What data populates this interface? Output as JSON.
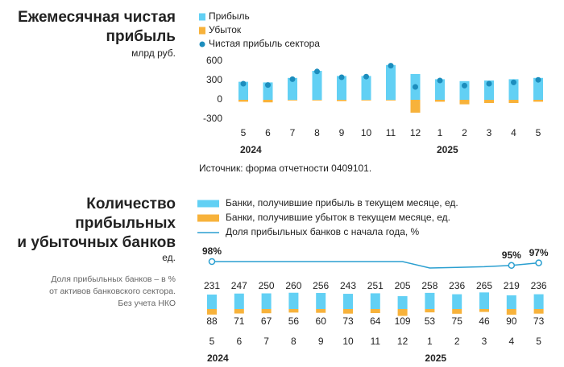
{
  "chart_data": [
    {
      "type": "bar",
      "title_lines": [
        "Ежемесячная чистая",
        "прибыль"
      ],
      "subtitle": "млрд руб.",
      "categories": [
        "5",
        "6",
        "7",
        "8",
        "9",
        "10",
        "11",
        "12",
        "1",
        "2",
        "3",
        "4",
        "5"
      ],
      "years": [
        "2024",
        "2025"
      ],
      "series": [
        {
          "name": "Прибыль",
          "kind": "bar",
          "color": "#62d0f4",
          "values": [
            280,
            270,
            340,
            450,
            370,
            370,
            540,
            400,
            320,
            290,
            300,
            320,
            340
          ]
        },
        {
          "name": "Убыток",
          "kind": "bar",
          "color": "#f7b23b",
          "values": [
            -30,
            -40,
            -10,
            -10,
            -20,
            -10,
            -10,
            -200,
            -30,
            -70,
            -50,
            -50,
            -30
          ]
        },
        {
          "name": "Чистая прибыль сектора",
          "kind": "dot",
          "color": "#1c8dbd",
          "values": [
            250,
            230,
            320,
            440,
            350,
            360,
            530,
            200,
            300,
            220,
            250,
            270,
            310
          ]
        }
      ],
      "ylim": [
        -300,
        600
      ],
      "yticks": [
        600,
        300,
        0,
        -300
      ],
      "source": "Источник: форма отчетности 0409101."
    },
    {
      "type": "combo",
      "title_lines": [
        "Количество",
        "прибыльных",
        "и убыточных банков"
      ],
      "unit": "ед.",
      "note_lines": [
        "Доля прибыльных банков – в %",
        "от активов банковского сектора.",
        "Без учета НКО"
      ],
      "categories": [
        "5",
        "6",
        "7",
        "8",
        "9",
        "10",
        "11",
        "12",
        "1",
        "2",
        "3",
        "4",
        "5"
      ],
      "years": [
        "2024",
        "2025"
      ],
      "series": [
        {
          "name": "Банки, получившие прибыль в текущем месяце, ед.",
          "kind": "bar",
          "color": "#62d0f4",
          "label_color": "#222222",
          "values": [
            231,
            247,
            250,
            260,
            256,
            243,
            251,
            205,
            258,
            236,
            265,
            219,
            236
          ]
        },
        {
          "name": "Банки, получившие убыток в текущем месяце, ед.",
          "kind": "bar",
          "color": "#f7b23b",
          "label_color": "#f0a52a",
          "values": [
            88,
            71,
            67,
            56,
            60,
            73,
            64,
            109,
            53,
            75,
            46,
            90,
            73
          ]
        },
        {
          "name": "Доля прибыльных банков с начала года, %",
          "kind": "line",
          "color": "#2a9fd0",
          "values": [
            98,
            98,
            98,
            98,
            98,
            98,
            98,
            98,
            93,
            93.5,
            94,
            95,
            97
          ],
          "value_labels": [
            "98%",
            null,
            null,
            null,
            null,
            null,
            null,
            null,
            null,
            null,
            null,
            "95%",
            "97%"
          ]
        }
      ]
    }
  ]
}
